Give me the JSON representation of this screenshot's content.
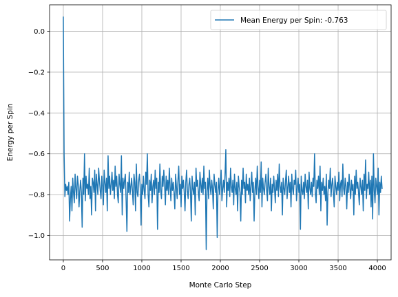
{
  "chart_data": {
    "type": "line",
    "xlabel": "Monte Carlo Step",
    "ylabel": "Energy per Spin",
    "xlim": [
      -175,
      4175
    ],
    "ylim": [
      -1.12,
      0.13
    ],
    "xticks": [
      0,
      500,
      1000,
      1500,
      2000,
      2500,
      3000,
      3500,
      4000
    ],
    "xtick_labels": [
      "0",
      "500",
      "1000",
      "1500",
      "2000",
      "2500",
      "3000",
      "3500",
      "4000"
    ],
    "yticks": [
      0.0,
      -0.2,
      -0.4,
      -0.6,
      -0.8,
      -1.0
    ],
    "ytick_labels": [
      "0.0",
      "−0.2",
      "−0.4",
      "−0.6",
      "−0.8",
      "−1.0"
    ],
    "grid": true,
    "legend_position": "upper right",
    "series": [
      {
        "name": "Mean Energy per Spin: -0.763",
        "color": "#1f77b4",
        "x_start": 0,
        "x_step": 10,
        "values": [
          0.07,
          -0.6,
          -0.81,
          -0.75,
          -0.78,
          -0.76,
          -0.8,
          -0.74,
          -0.93,
          -0.82,
          -0.76,
          -0.88,
          -0.72,
          -0.79,
          -0.84,
          -0.7,
          -0.77,
          -0.82,
          -0.71,
          -0.75,
          -0.86,
          -0.78,
          -0.73,
          -0.79,
          -0.96,
          -0.72,
          -0.8,
          -0.6,
          -0.83,
          -0.71,
          -0.77,
          -0.75,
          -0.8,
          -0.67,
          -0.82,
          -0.76,
          -0.9,
          -0.72,
          -0.74,
          -0.79,
          -0.68,
          -0.88,
          -0.7,
          -0.75,
          -0.8,
          -0.67,
          -0.73,
          -0.78,
          -0.82,
          -0.71,
          -0.76,
          -0.85,
          -0.68,
          -0.74,
          -0.79,
          -0.72,
          -0.88,
          -0.61,
          -0.77,
          -0.71,
          -0.8,
          -0.75,
          -0.69,
          -0.78,
          -0.73,
          -0.82,
          -0.66,
          -0.76,
          -0.71,
          -0.8,
          -0.84,
          -0.7,
          -0.75,
          -0.79,
          -0.61,
          -0.9,
          -0.72,
          -0.77,
          -0.73,
          -0.7,
          -0.83,
          -0.98,
          -0.74,
          -0.79,
          -0.69,
          -0.8,
          -0.76,
          -0.72,
          -0.78,
          -0.85,
          -0.7,
          -0.74,
          -0.88,
          -0.65,
          -0.79,
          -0.81,
          -0.73,
          -0.7,
          -0.77,
          -0.95,
          -0.75,
          -0.8,
          -0.71,
          -0.78,
          -0.82,
          -0.69,
          -0.75,
          -0.6,
          -0.8,
          -0.86,
          -0.73,
          -0.78,
          -0.7,
          -0.84,
          -0.76,
          -0.73,
          -0.8,
          -0.68,
          -0.77,
          -0.72,
          -0.97,
          -0.74,
          -0.79,
          -0.65,
          -0.78,
          -0.82,
          -0.71,
          -0.76,
          -0.68,
          -0.75,
          -0.85,
          -0.71,
          -0.78,
          -0.73,
          -0.8,
          -0.67,
          -0.76,
          -0.83,
          -0.72,
          -0.78,
          -0.74,
          -0.79,
          -0.87,
          -0.7,
          -0.76,
          -0.82,
          -0.73,
          -0.66,
          -0.8,
          -0.75,
          -0.86,
          -0.71,
          -0.77,
          -0.73,
          -0.79,
          -0.88,
          -0.74,
          -0.68,
          -0.78,
          -0.82,
          -0.75,
          -0.72,
          -0.79,
          -0.93,
          -0.71,
          -0.77,
          -0.8,
          -0.74,
          -0.9,
          -0.67,
          -0.76,
          -0.73,
          -0.79,
          -0.83,
          -0.69,
          -0.75,
          -0.79,
          -0.72,
          -0.8,
          -0.66,
          -0.77,
          -0.74,
          -1.07,
          -0.78,
          -0.72,
          -0.82,
          -0.68,
          -0.76,
          -0.8,
          -0.73,
          -0.77,
          -0.87,
          -0.7,
          -0.75,
          -0.79,
          -0.74,
          -1.01,
          -0.78,
          -0.72,
          -0.8,
          -0.75,
          -0.68,
          -0.83,
          -0.77,
          -0.73,
          -0.79,
          -0.7,
          -0.58,
          -0.86,
          -0.74,
          -0.78,
          -0.72,
          -0.81,
          -0.67,
          -0.76,
          -0.79,
          -0.73,
          -0.85,
          -0.7,
          -0.77,
          -0.8,
          -0.74,
          -0.88,
          -0.71,
          -0.76,
          -0.79,
          -0.93,
          -0.73,
          -0.8,
          -0.67,
          -0.77,
          -0.74,
          -0.84,
          -0.7,
          -0.78,
          -0.75,
          -0.8,
          -0.72,
          -0.83,
          -0.76,
          -0.69,
          -0.79,
          -0.74,
          -0.93,
          -0.78,
          -0.72,
          -0.8,
          -0.66,
          -0.76,
          -0.82,
          -0.73,
          -0.79,
          -0.64,
          -0.86,
          -0.72,
          -0.77,
          -0.8,
          -0.74,
          -0.7,
          -0.78,
          -0.83,
          -0.67,
          -0.76,
          -0.8,
          -0.72,
          -0.88,
          -0.75,
          -0.79,
          -0.71,
          -0.77,
          -0.84,
          -0.73,
          -0.78,
          -0.7,
          -0.81,
          -0.65,
          -0.76,
          -0.79,
          -0.74,
          -0.9,
          -0.72,
          -0.77,
          -0.8,
          -0.73,
          -0.68,
          -0.82,
          -0.76,
          -0.71,
          -0.79,
          -0.74,
          -0.86,
          -0.7,
          -0.77,
          -0.8,
          -0.73,
          -0.75,
          -0.68,
          -0.83,
          -0.77,
          -0.72,
          -0.79,
          -0.75,
          -0.97,
          -0.71,
          -0.78,
          -0.8,
          -0.74,
          -0.82,
          -0.7,
          -0.76,
          -0.79,
          -0.73,
          -0.87,
          -0.69,
          -0.77,
          -0.8,
          -0.74,
          -0.81,
          -0.72,
          -0.76,
          -0.6,
          -0.79,
          -0.84,
          -0.73,
          -0.77,
          -0.71,
          -0.8,
          -0.66,
          -0.88,
          -0.74,
          -0.78,
          -0.72,
          -0.8,
          -0.76,
          -0.83,
          -0.7,
          -0.95,
          -0.79,
          -0.73,
          -0.77,
          -0.67,
          -0.81,
          -0.75,
          -0.72,
          -0.79,
          -0.86,
          -0.71,
          -0.76,
          -0.8,
          -0.74,
          -0.78,
          -0.69,
          -0.83,
          -0.75,
          -0.73,
          -0.81,
          -0.65,
          -0.77,
          -0.8,
          -0.72,
          -0.76,
          -0.87,
          -0.74,
          -0.79,
          -0.7,
          -0.77,
          -0.82,
          -0.73,
          -0.78,
          -0.75,
          -0.9,
          -0.71,
          -0.8,
          -0.68,
          -0.77,
          -0.74,
          -0.79,
          -0.85,
          -0.72,
          -0.76,
          -0.8,
          -0.73,
          -0.88,
          -0.7,
          -0.78,
          -0.63,
          -0.82,
          -0.75,
          -0.77,
          -0.69,
          -0.8,
          -0.73,
          -0.86,
          -0.71,
          -0.92,
          -0.6,
          -0.78,
          -0.84,
          -0.72,
          -0.76,
          -0.8,
          -0.67,
          -0.9,
          -0.74,
          -0.79,
          -0.71,
          -0.77
        ]
      }
    ]
  },
  "legend": {
    "entries": [
      {
        "label": "Mean Energy per Spin: -0.763",
        "color": "#1f77b4"
      }
    ]
  }
}
